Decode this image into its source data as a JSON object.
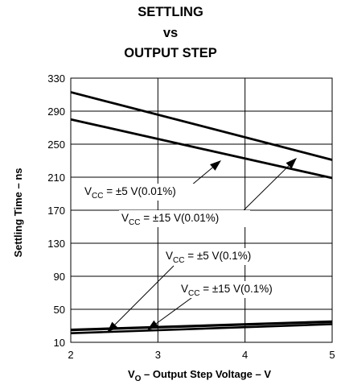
{
  "chart_data": {
    "type": "line",
    "title": [
      "SETTLING",
      "vs",
      "OUTPUT STEP"
    ],
    "xlabel": {
      "main": "V",
      "sub": "O",
      "rest": " – Output Step Voltage – V"
    },
    "ylabel": "Settling Time – ns",
    "xlim": [
      2,
      5
    ],
    "ylim": [
      10,
      330
    ],
    "x_ticks": [
      "2",
      "3",
      "4",
      "5"
    ],
    "y_ticks": [
      "10",
      "50",
      "90",
      "130",
      "170",
      "210",
      "250",
      "290",
      "330"
    ],
    "grid": true,
    "series": [
      {
        "name": "VCC = ±5 V(0.01%)",
        "x": [
          2,
          5
        ],
        "y": [
          313,
          231
        ]
      },
      {
        "name": "VCC = ±15 V(0.01%)",
        "x": [
          2,
          5
        ],
        "y": [
          280,
          209
        ]
      },
      {
        "name": "VCC = ±5 V(0.1%)",
        "x": [
          2,
          5
        ],
        "y": [
          25,
          35
        ]
      },
      {
        "name": "VCC = ±15 V(0.1%)",
        "x": [
          2,
          5
        ],
        "y": [
          21,
          32
        ]
      }
    ],
    "annotations": [
      {
        "pre": "V",
        "sub": "CC",
        "post": " = ±5 V(0.01%)"
      },
      {
        "pre": "V",
        "sub": "CC",
        "post": " = ±15 V(0.01%)"
      },
      {
        "pre": "V",
        "sub": "CC",
        "post": " = ±5 V(0.1%)"
      },
      {
        "pre": "V",
        "sub": "CC",
        "post": " = ±15 V(0.1%)"
      }
    ]
  }
}
